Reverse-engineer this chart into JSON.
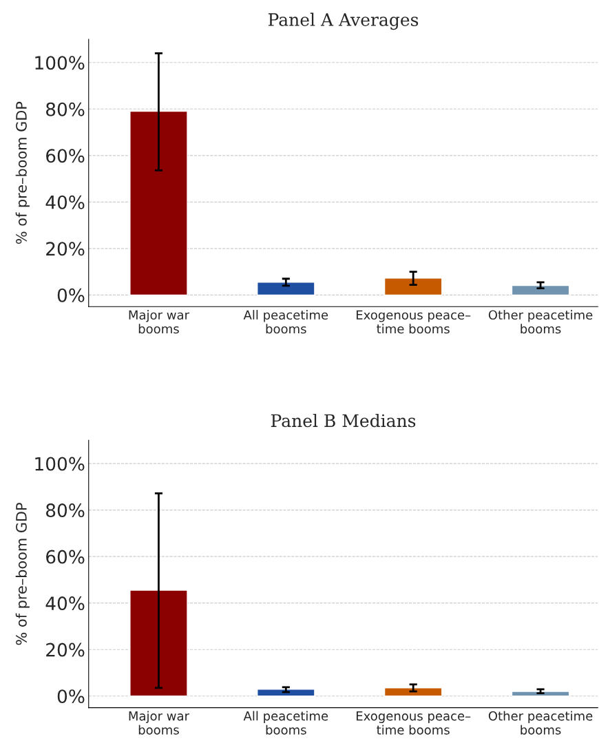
{
  "chart_data": [
    {
      "type": "bar",
      "title": "Panel A Averages",
      "ylabel": "% of pre–boom GDP",
      "categories": [
        "Major war\nbooms",
        "All peacetime\nbooms",
        "Exogenous peace–\ntime booms",
        "Other peacetime\nbooms"
      ],
      "values": [
        79,
        5.5,
        7.3,
        4.1
      ],
      "colors": [
        "#8b0000",
        "#1f4fa0",
        "#c55a00",
        "#7093b0"
      ],
      "errors": [
        [
          53.6,
          104
        ],
        [
          4,
          7
        ],
        [
          4.4,
          10
        ],
        [
          2.9,
          5.5
        ]
      ],
      "ylim": [
        -5,
        110
      ],
      "yticks": [
        {
          "value": 0,
          "label": "0%"
        },
        {
          "value": 20,
          "label": "20%"
        },
        {
          "value": 40,
          "label": "40%"
        },
        {
          "value": 60,
          "label": "60%"
        },
        {
          "value": 80,
          "label": "80%"
        },
        {
          "value": 100,
          "label": "100%"
        }
      ],
      "grid": "y",
      "legend": false
    },
    {
      "type": "bar",
      "title": "Panel B Medians",
      "ylabel": "% of pre–boom GDP",
      "categories": [
        "Major war\nbooms",
        "All peacetime\nbooms",
        "Exogenous peace–\ntime booms",
        "Other peacetime\nbooms"
      ],
      "values": [
        45.5,
        2.9,
        3.5,
        2
      ],
      "colors": [
        "#8b0000",
        "#1f4fa0",
        "#c55a00",
        "#7093b0"
      ],
      "errors": [
        [
          3.5,
          87.2
        ],
        [
          1.7,
          3.8
        ],
        [
          2,
          5
        ],
        [
          1.2,
          2.9
        ]
      ],
      "ylim": [
        -5,
        110
      ],
      "yticks": [
        {
          "value": 0,
          "label": "0%"
        },
        {
          "value": 20,
          "label": "20%"
        },
        {
          "value": 40,
          "label": "40%"
        },
        {
          "value": 60,
          "label": "60%"
        },
        {
          "value": 80,
          "label": "80%"
        },
        {
          "value": 100,
          "label": "100%"
        }
      ],
      "grid": "y",
      "legend": false
    }
  ]
}
